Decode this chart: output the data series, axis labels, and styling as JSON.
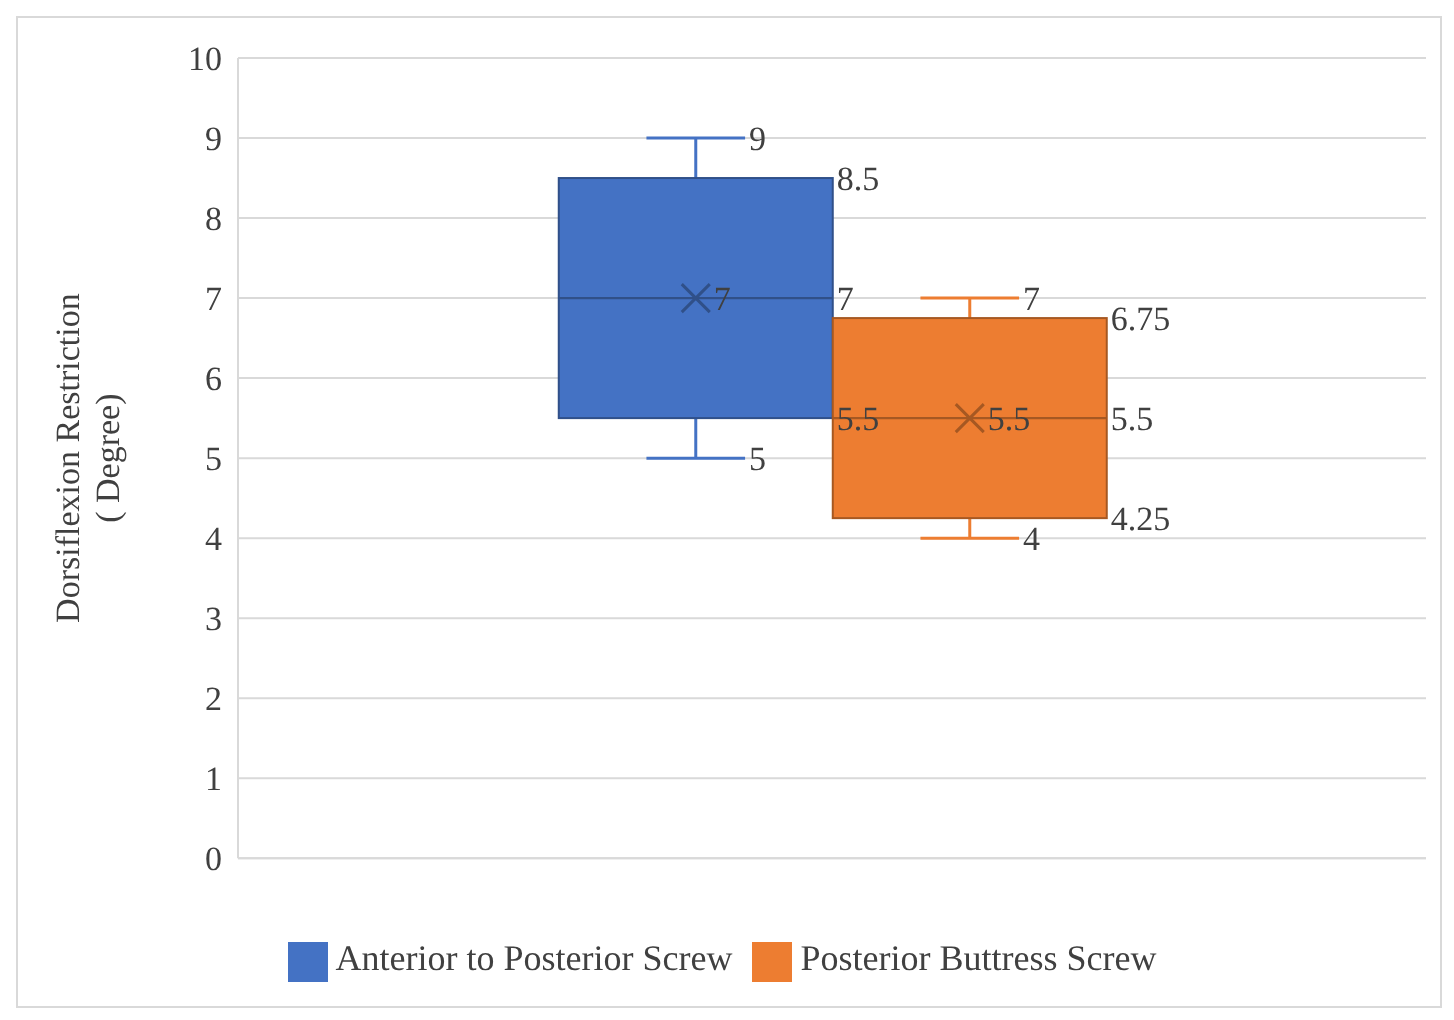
{
  "chart_data": {
    "type": "box",
    "ylabel": "Dorsiflexion Restriction ( Degree)",
    "categories": [
      null
    ],
    "series": [
      {
        "name": "Anterior to Posterior Screw",
        "color": "#4472c4",
        "boxes": [
          {
            "low": 5,
            "q1": 5.5,
            "median": 7,
            "q3": 8.5,
            "high": 9,
            "mean": 7
          }
        ]
      },
      {
        "name": "Posterior Buttress Screw",
        "color": "#ed7d31",
        "boxes": [
          {
            "low": 4,
            "q1": 4.25,
            "median": 5.5,
            "q3": 6.75,
            "high": 7,
            "mean": 5.5
          }
        ]
      }
    ],
    "annotations": [
      "9",
      "8.5",
      "7",
      "7",
      "5.5",
      "5",
      "7",
      "6.75",
      "5.5",
      "5.5",
      "4.25",
      "4"
    ],
    "ylim": [
      0,
      10
    ],
    "yticks": [
      0,
      1,
      2,
      3,
      4,
      5,
      6,
      7,
      8,
      9,
      10
    ],
    "grid": "y",
    "legend": "bottom"
  }
}
